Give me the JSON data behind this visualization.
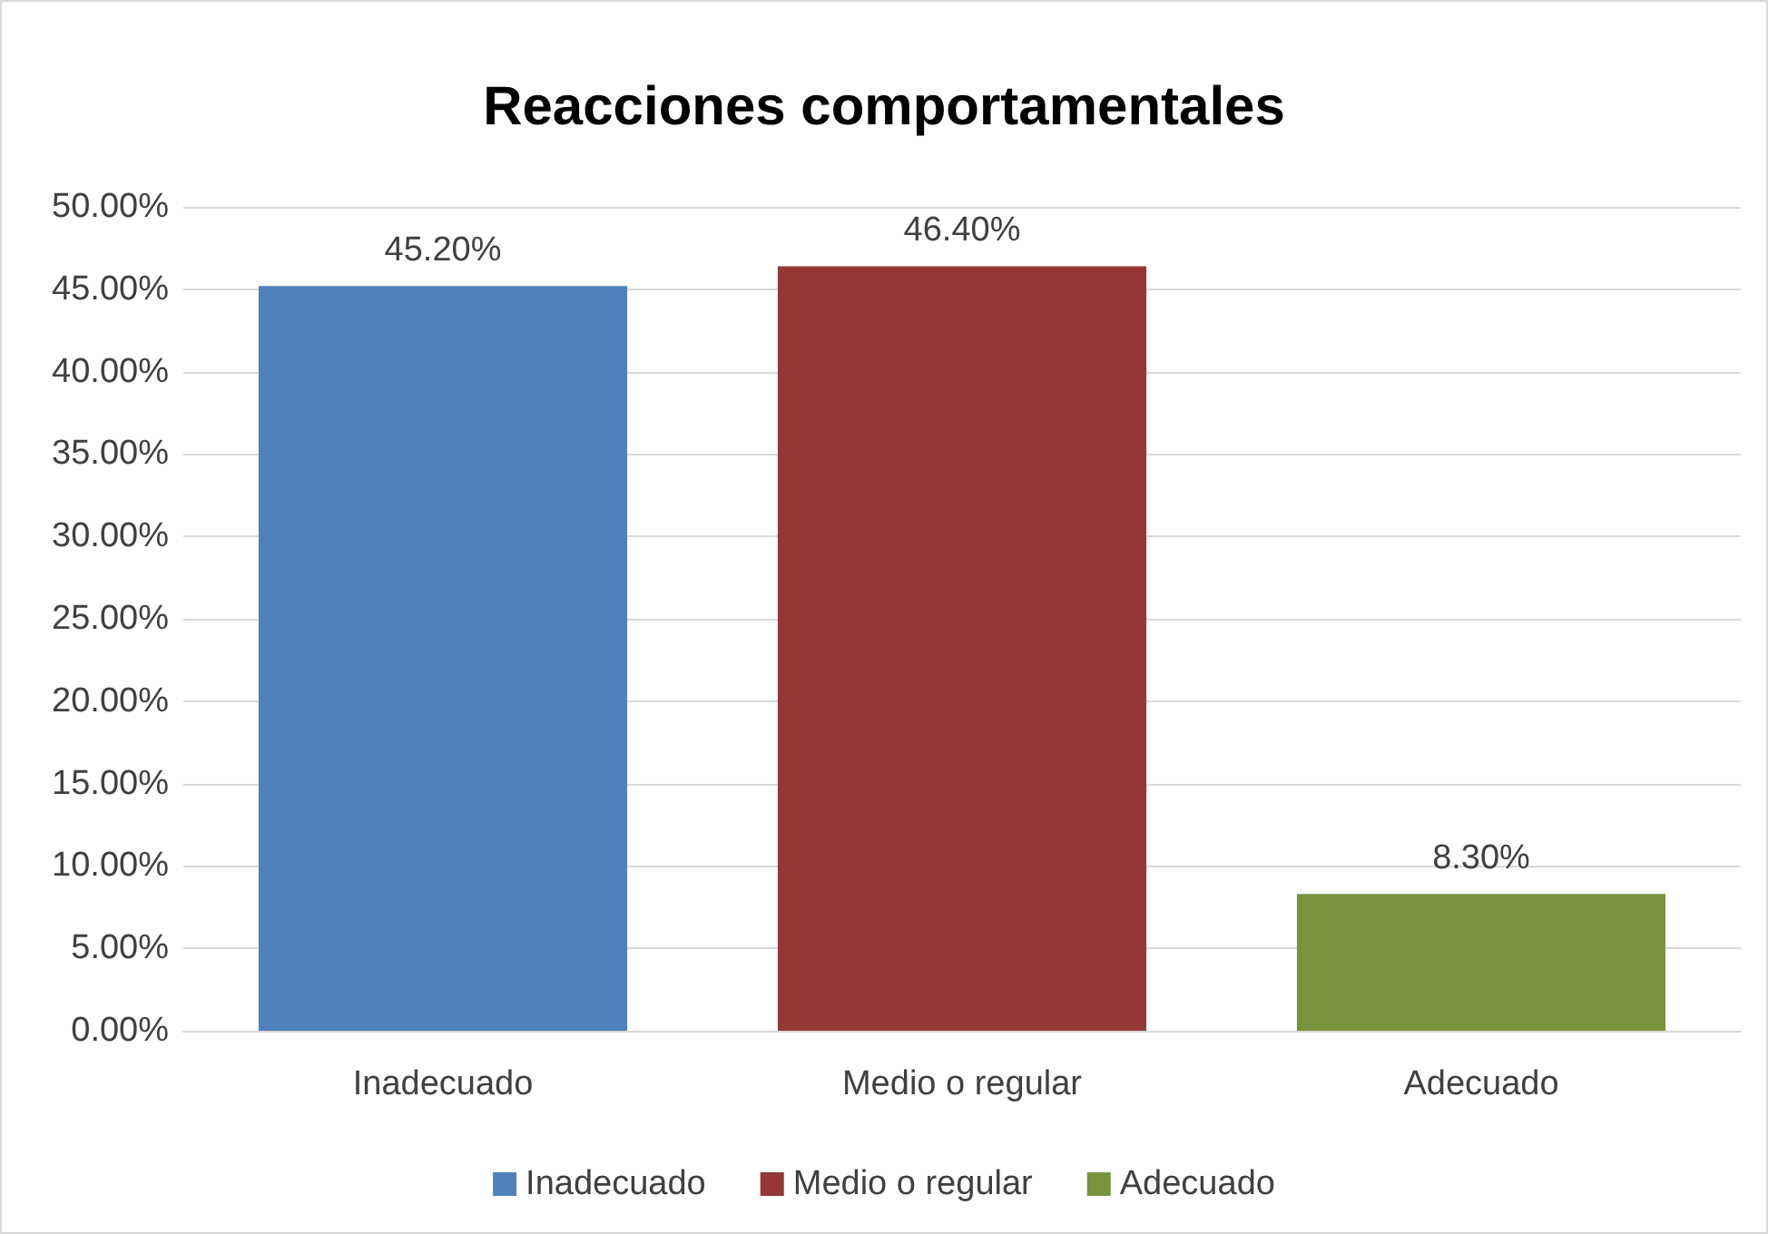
{
  "chart_data": {
    "type": "bar",
    "title": "Reacciones comportamentales",
    "categories": [
      "Inadecuado",
      "Medio o regular",
      "Adecuado"
    ],
    "series": [
      {
        "name": "Inadecuado",
        "color": "#4f81bd",
        "values": [
          45.2,
          null,
          null
        ],
        "value_labels": [
          "45.20%",
          null,
          null
        ]
      },
      {
        "name": "Medio o regular",
        "color": "#953735",
        "values": [
          null,
          46.4,
          null
        ],
        "value_labels": [
          null,
          "46.40%",
          null
        ]
      },
      {
        "name": "Adecuado",
        "color": "#77933c",
        "values": [
          null,
          null,
          8.3
        ],
        "value_labels": [
          null,
          null,
          "8.30%"
        ]
      }
    ],
    "ylim": [
      0,
      50
    ],
    "yticks": [
      {
        "value": 0,
        "label": "0.00%"
      },
      {
        "value": 5,
        "label": "5.00%"
      },
      {
        "value": 10,
        "label": "10.00%"
      },
      {
        "value": 15,
        "label": "15.00%"
      },
      {
        "value": 20,
        "label": "20.00%"
      },
      {
        "value": 25,
        "label": "25.00%"
      },
      {
        "value": 30,
        "label": "30.00%"
      },
      {
        "value": 35,
        "label": "35.00%"
      },
      {
        "value": 40,
        "label": "40.00%"
      },
      {
        "value": 45,
        "label": "45.00%"
      },
      {
        "value": 50,
        "label": "50.00%"
      }
    ],
    "grid": "y",
    "legend": "bottom"
  }
}
